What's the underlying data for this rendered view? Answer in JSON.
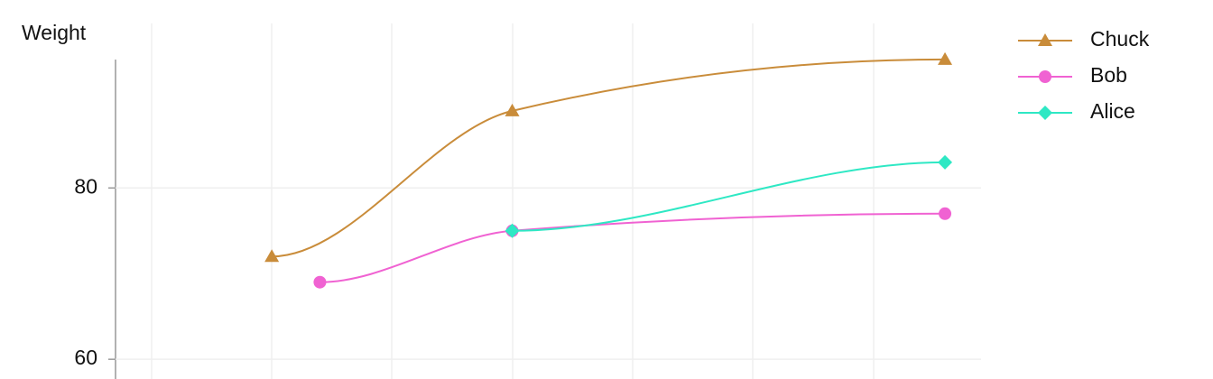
{
  "chart_data": {
    "type": "line",
    "y_label": "Weight",
    "ylim": [
      57.7,
      95.2
    ],
    "yticks": [
      60,
      80
    ],
    "xlim": [
      0.7,
      7.9
    ],
    "grid": true,
    "legend": "top-right",
    "series": [
      {
        "name": "Chuck",
        "color": "#c98c3a",
        "marker": "triangle",
        "x": [
          2,
          4,
          7.6
        ],
        "values": [
          72,
          89,
          95
        ]
      },
      {
        "name": "Bob",
        "color": "#f062d2",
        "marker": "circle",
        "x": [
          2.4,
          4,
          7.6
        ],
        "values": [
          69,
          75,
          77
        ]
      },
      {
        "name": "Alice",
        "color": "#2ee8c4",
        "marker": "diamond",
        "x": [
          4,
          7.6
        ],
        "values": [
          75,
          83
        ]
      }
    ]
  }
}
